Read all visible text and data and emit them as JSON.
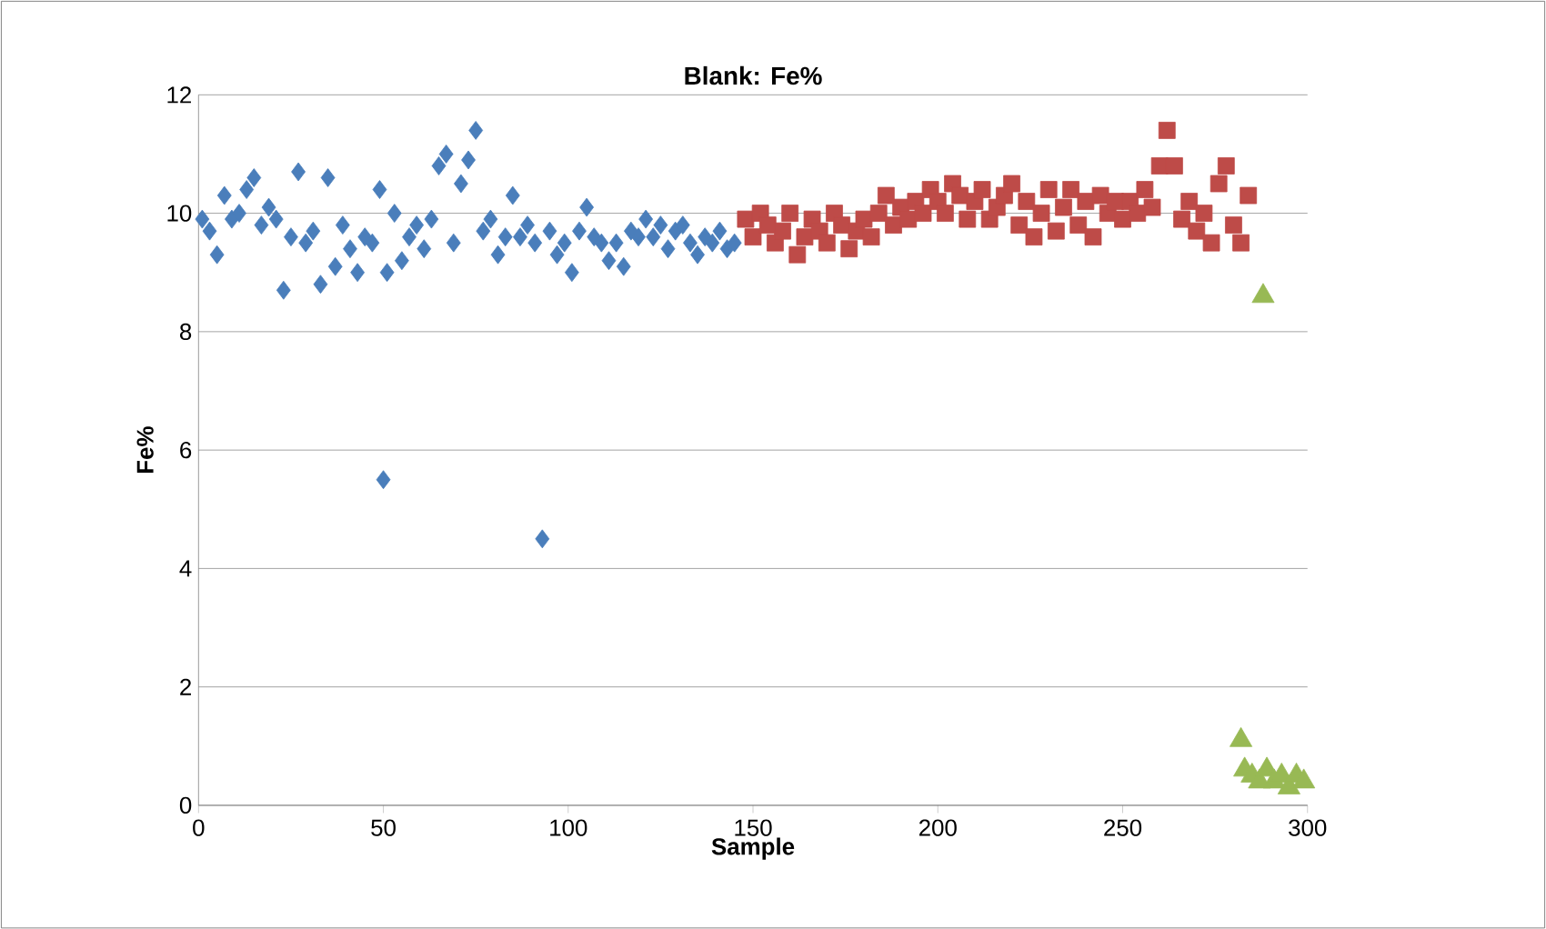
{
  "chart_data": {
    "type": "scatter",
    "title": "Blank: Fe%",
    "xlabel": "Sample",
    "ylabel": "Fe%",
    "xlim": [
      0,
      300
    ],
    "ylim": [
      0,
      12
    ],
    "xticks": [
      0,
      50,
      100,
      150,
      200,
      250,
      300
    ],
    "yticks": [
      0,
      2,
      4,
      6,
      8,
      10,
      12
    ],
    "grid": "y",
    "series": [
      {
        "color": "#4a7ebb",
        "marker": "diamond",
        "x": [
          1,
          3,
          5,
          7,
          9,
          11,
          13,
          15,
          17,
          19,
          21,
          23,
          25,
          27,
          29,
          31,
          33,
          35,
          37,
          39,
          41,
          43,
          45,
          47,
          49,
          50,
          51,
          53,
          55,
          57,
          59,
          61,
          63,
          65,
          67,
          69,
          71,
          73,
          75,
          77,
          79,
          81,
          83,
          85,
          87,
          89,
          91,
          93,
          95,
          97,
          99,
          101,
          103,
          105,
          107,
          109,
          111,
          113,
          115,
          117,
          119,
          121,
          123,
          125,
          127,
          129,
          131,
          133,
          135,
          137,
          139,
          141,
          143,
          145
        ],
        "values": [
          9.9,
          9.7,
          9.3,
          10.3,
          9.9,
          10.0,
          10.4,
          10.6,
          9.8,
          10.1,
          9.9,
          8.7,
          9.6,
          10.7,
          9.5,
          9.7,
          8.8,
          10.6,
          9.1,
          9.8,
          9.4,
          9.0,
          9.6,
          9.5,
          10.4,
          5.5,
          9.0,
          10.0,
          9.2,
          9.6,
          9.8,
          9.4,
          9.9,
          10.8,
          11.0,
          9.5,
          10.5,
          10.9,
          11.4,
          9.7,
          9.9,
          9.3,
          9.6,
          10.3,
          9.6,
          9.8,
          9.5,
          4.5,
          9.7,
          9.3,
          9.5,
          9.0,
          9.7,
          10.1,
          9.6,
          9.5,
          9.2,
          9.5,
          9.1,
          9.7,
          9.6,
          9.9,
          9.6,
          9.8,
          9.4,
          9.7,
          9.8,
          9.5,
          9.3,
          9.6,
          9.5,
          9.7,
          9.4,
          9.5
        ]
      },
      {
        "color": "#be4b48",
        "marker": "square",
        "x": [
          148,
          150,
          152,
          154,
          156,
          158,
          160,
          162,
          164,
          166,
          168,
          170,
          172,
          174,
          176,
          178,
          180,
          182,
          184,
          186,
          188,
          190,
          192,
          194,
          196,
          198,
          200,
          202,
          204,
          206,
          208,
          210,
          212,
          214,
          216,
          218,
          220,
          222,
          224,
          226,
          228,
          230,
          232,
          234,
          236,
          238,
          240,
          242,
          244,
          246,
          248,
          250,
          252,
          254,
          256,
          258,
          260,
          262,
          264,
          266,
          268,
          270,
          272,
          274,
          276,
          278,
          280,
          282,
          284
        ],
        "values": [
          9.9,
          9.6,
          10.0,
          9.8,
          9.5,
          9.7,
          10.0,
          9.3,
          9.6,
          9.9,
          9.7,
          9.5,
          10.0,
          9.8,
          9.4,
          9.7,
          9.9,
          9.6,
          10.0,
          10.3,
          9.8,
          10.1,
          9.9,
          10.2,
          10.0,
          10.4,
          10.2,
          10.0,
          10.5,
          10.3,
          9.9,
          10.2,
          10.4,
          9.9,
          10.1,
          10.3,
          10.5,
          9.8,
          10.2,
          9.6,
          10.0,
          10.4,
          9.7,
          10.1,
          10.4,
          9.8,
          10.2,
          9.6,
          10.3,
          10.0,
          10.2,
          9.9,
          10.2,
          10.0,
          10.4,
          10.1,
          10.8,
          11.4,
          10.8,
          9.9,
          10.2,
          9.7,
          10.0,
          9.5,
          10.5,
          10.8,
          9.8,
          9.5,
          10.3
        ]
      },
      {
        "color": "#98b954",
        "marker": "triangle",
        "x": [
          288,
          282,
          283,
          285,
          287,
          289,
          291,
          293,
          295,
          297,
          299
        ],
        "values": [
          8.6,
          1.1,
          0.6,
          0.5,
          0.4,
          0.6,
          0.4,
          0.5,
          0.3,
          0.5,
          0.4
        ]
      }
    ]
  }
}
